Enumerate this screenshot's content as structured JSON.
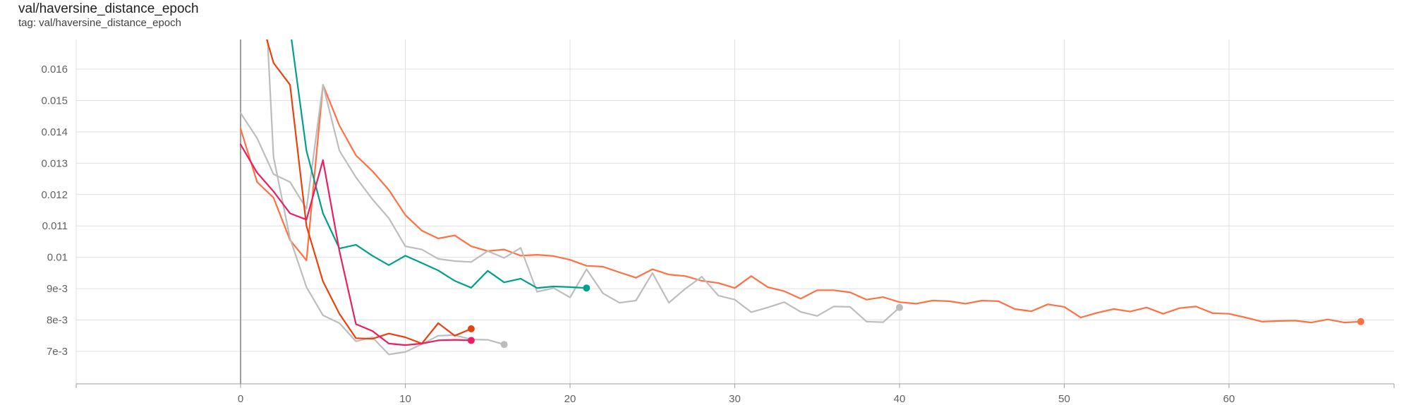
{
  "card": {
    "title": "val/haversine_distance_epoch",
    "tag": "tag: val/haversine_distance_epoch"
  },
  "chart_data": {
    "type": "line",
    "title": "val/haversine_distance_epoch",
    "xlabel": "",
    "ylabel": "",
    "xlim": [
      -10,
      70.5
    ],
    "ylim": [
      0.0061,
      0.0173
    ],
    "x_ticks": [
      0,
      10,
      20,
      30,
      40,
      50,
      60
    ],
    "x_tick_labels": [
      "0",
      "10",
      "20",
      "30",
      "40",
      "50",
      "60"
    ],
    "y_ticks": [
      0.007,
      0.008,
      0.009,
      0.01,
      0.011,
      0.012,
      0.013,
      0.014,
      0.015,
      0.016
    ],
    "y_tick_labels": [
      "7e-3",
      "8e-3",
      "9e-3",
      "0.01",
      "0.011",
      "0.012",
      "0.013",
      "0.014",
      "0.015",
      "0.016"
    ],
    "grid": true,
    "series": [
      {
        "color": "#ff7043",
        "end_marker": true,
        "x": [
          0,
          1,
          2,
          3,
          4,
          5,
          6,
          7,
          8,
          9,
          10,
          11,
          12,
          13,
          14,
          15,
          16,
          17,
          18,
          19,
          20,
          21,
          22,
          23,
          24,
          25,
          26,
          27,
          28,
          29,
          30,
          31,
          32,
          33,
          34,
          35,
          36,
          37,
          38,
          39,
          40,
          41,
          42,
          43,
          44,
          45,
          46,
          47,
          48,
          49,
          50,
          51,
          52,
          53,
          54,
          55,
          56,
          57,
          58,
          59,
          60,
          61,
          62,
          63,
          64,
          65,
          66,
          67,
          68
        ],
        "y": [
          0.0141,
          0.0124,
          0.0119,
          0.01055,
          0.0099,
          0.0155,
          0.0142,
          0.01325,
          0.01275,
          0.01215,
          0.01135,
          0.01085,
          0.0106,
          0.0107,
          0.01035,
          0.0102,
          0.01025,
          0.01005,
          0.01008,
          0.01004,
          0.00992,
          0.00973,
          0.0097,
          0.00952,
          0.00935,
          0.00962,
          0.00945,
          0.0094,
          0.00925,
          0.00918,
          0.00902,
          0.0094,
          0.00905,
          0.00892,
          0.00868,
          0.00895,
          0.00895,
          0.00888,
          0.00865,
          0.00873,
          0.00857,
          0.00852,
          0.00862,
          0.0086,
          0.00852,
          0.00862,
          0.0086,
          0.00835,
          0.00828,
          0.0085,
          0.00842,
          0.00808,
          0.00823,
          0.00835,
          0.00827,
          0.0084,
          0.0082,
          0.00838,
          0.00843,
          0.00822,
          0.0082,
          0.00808,
          0.00795,
          0.00797,
          0.00798,
          0.00792,
          0.00802,
          0.00792,
          0.00795
        ]
      },
      {
        "color": "#bdbdbd",
        "end_marker": true,
        "x": [
          0,
          1,
          2,
          3,
          4,
          5,
          6,
          7,
          8,
          9,
          10,
          11,
          12,
          13,
          14,
          15,
          16,
          17,
          18,
          19,
          20,
          21,
          22,
          23,
          24,
          25,
          26,
          27,
          28,
          29,
          30,
          31,
          32,
          33,
          34,
          35,
          36,
          37,
          38,
          39,
          40
        ],
        "y": [
          0.0146,
          0.0138,
          0.01265,
          0.0124,
          0.01155,
          0.0155,
          0.0134,
          0.01255,
          0.01185,
          0.01125,
          0.01035,
          0.01025,
          0.00995,
          0.00988,
          0.00985,
          0.0102,
          0.00998,
          0.0103,
          0.0089,
          0.00902,
          0.00872,
          0.00962,
          0.00885,
          0.00855,
          0.00862,
          0.0095,
          0.00855,
          0.009,
          0.00938,
          0.00878,
          0.00865,
          0.00825,
          0.0084,
          0.00857,
          0.00826,
          0.00813,
          0.00843,
          0.00842,
          0.00795,
          0.00793,
          0.0084
        ]
      },
      {
        "color": "#00a08a",
        "end_marker": true,
        "x": [
          3,
          4,
          5,
          6,
          7,
          8,
          9,
          10,
          11,
          12,
          13,
          14,
          15,
          16,
          17,
          18,
          19,
          20,
          21
        ],
        "y": [
          0.0173,
          0.0134,
          0.0114,
          0.01028,
          0.0104,
          0.01005,
          0.00975,
          0.01005,
          0.00982,
          0.00958,
          0.00925,
          0.00903,
          0.00957,
          0.0092,
          0.00932,
          0.00902,
          0.00907,
          0.00905,
          0.00902
        ]
      },
      {
        "color": "#bdbdbd",
        "end_marker": true,
        "x": [
          1.6,
          2,
          3,
          4,
          5,
          6,
          7,
          8,
          9,
          10,
          11,
          12,
          13,
          14,
          15,
          16
        ],
        "y": [
          0.0173,
          0.0132,
          0.0106,
          0.00905,
          0.00815,
          0.0079,
          0.00732,
          0.00745,
          0.0069,
          0.00698,
          0.00723,
          0.0075,
          0.00752,
          0.00738,
          0.00737,
          0.00722
        ]
      },
      {
        "color": "#e8430f",
        "end_marker": true,
        "x": [
          1.4,
          2,
          3,
          4,
          5,
          6,
          7,
          8,
          9,
          10,
          11,
          12,
          13,
          14
        ],
        "y": [
          0.0173,
          0.0162,
          0.0155,
          0.011,
          0.00923,
          0.0082,
          0.00742,
          0.0074,
          0.00757,
          0.00745,
          0.00725,
          0.0079,
          0.0075,
          0.00772
        ]
      },
      {
        "color": "#e91e63",
        "end_marker": true,
        "x": [
          0,
          1,
          2,
          3,
          4,
          5,
          6,
          7,
          8,
          9,
          10,
          11,
          12,
          13,
          14
        ],
        "y": [
          0.0136,
          0.0127,
          0.0121,
          0.0114,
          0.0112,
          0.0131,
          0.0102,
          0.00787,
          0.00765,
          0.00725,
          0.0072,
          0.00725,
          0.00735,
          0.00737,
          0.00735
        ]
      }
    ]
  }
}
